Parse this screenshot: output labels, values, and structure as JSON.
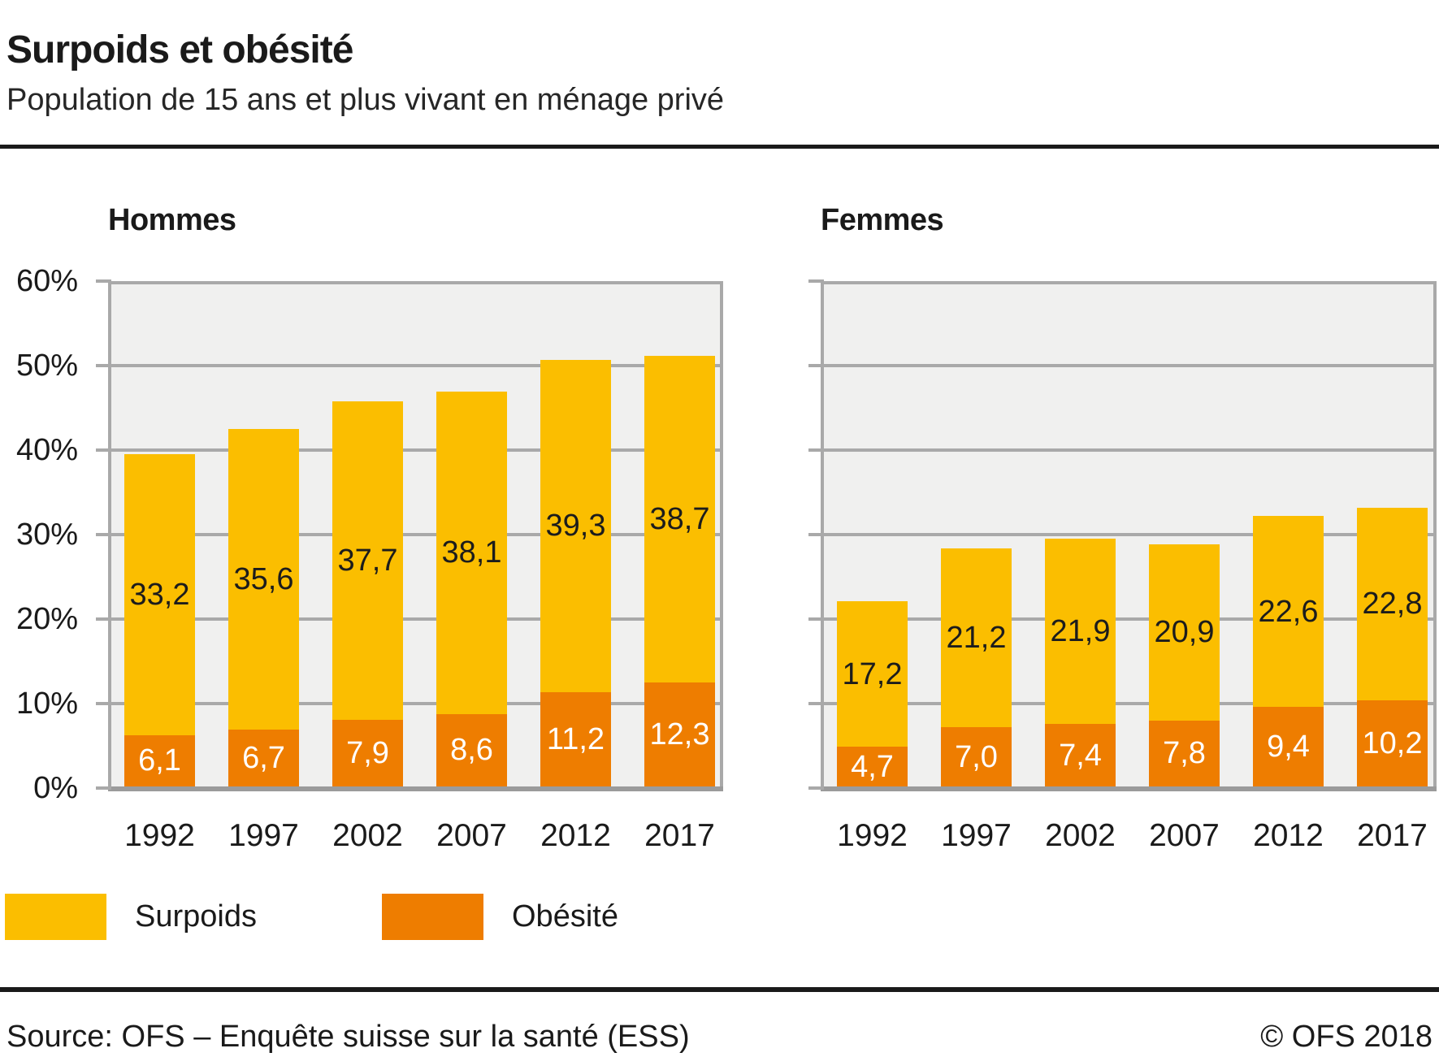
{
  "header": {
    "title": "Surpoids et obésité",
    "subtitle": "Population de 15 ans et plus vivant en ménage privé"
  },
  "legend": {
    "surpoids": "Surpoids",
    "obesite": "Obésité"
  },
  "footer": {
    "source": "Source: OFS – Enquête suisse sur la santé (ESS)",
    "copyright": "© OFS 2018"
  },
  "chart_data": {
    "type": "bar",
    "stacked": true,
    "unit": "%",
    "ylim": [
      0,
      60
    ],
    "ytick_values": [
      60,
      50,
      40,
      30,
      20,
      10,
      0
    ],
    "yticks": [
      "60%",
      "50%",
      "40%",
      "30%",
      "20%",
      "10%",
      "0%"
    ],
    "categories": [
      "1992",
      "1997",
      "2002",
      "2007",
      "2012",
      "2017"
    ],
    "grid": true,
    "legend_position": "bottom",
    "charts": [
      {
        "title": "Hommes",
        "series": [
          {
            "name": "Surpoids",
            "values": [
              33.2,
              35.6,
              37.7,
              38.1,
              39.3,
              38.7
            ]
          },
          {
            "name": "Obésité",
            "values": [
              6.1,
              6.7,
              7.9,
              8.6,
              11.2,
              12.3
            ]
          }
        ]
      },
      {
        "title": "Femmes",
        "series": [
          {
            "name": "Surpoids",
            "values": [
              17.2,
              21.2,
              21.9,
              20.9,
              22.6,
              22.8
            ]
          },
          {
            "name": "Obésité",
            "values": [
              4.7,
              7.0,
              7.4,
              7.8,
              9.4,
              10.2
            ]
          }
        ]
      }
    ],
    "colors": {
      "surpoids": "#fbbe00",
      "obesite": "#ee7d00",
      "plot_background": "#f0f0ef",
      "gridline": "#a9a9a9",
      "axis": "#9b9b9b",
      "text": "#1a1a1a"
    }
  }
}
